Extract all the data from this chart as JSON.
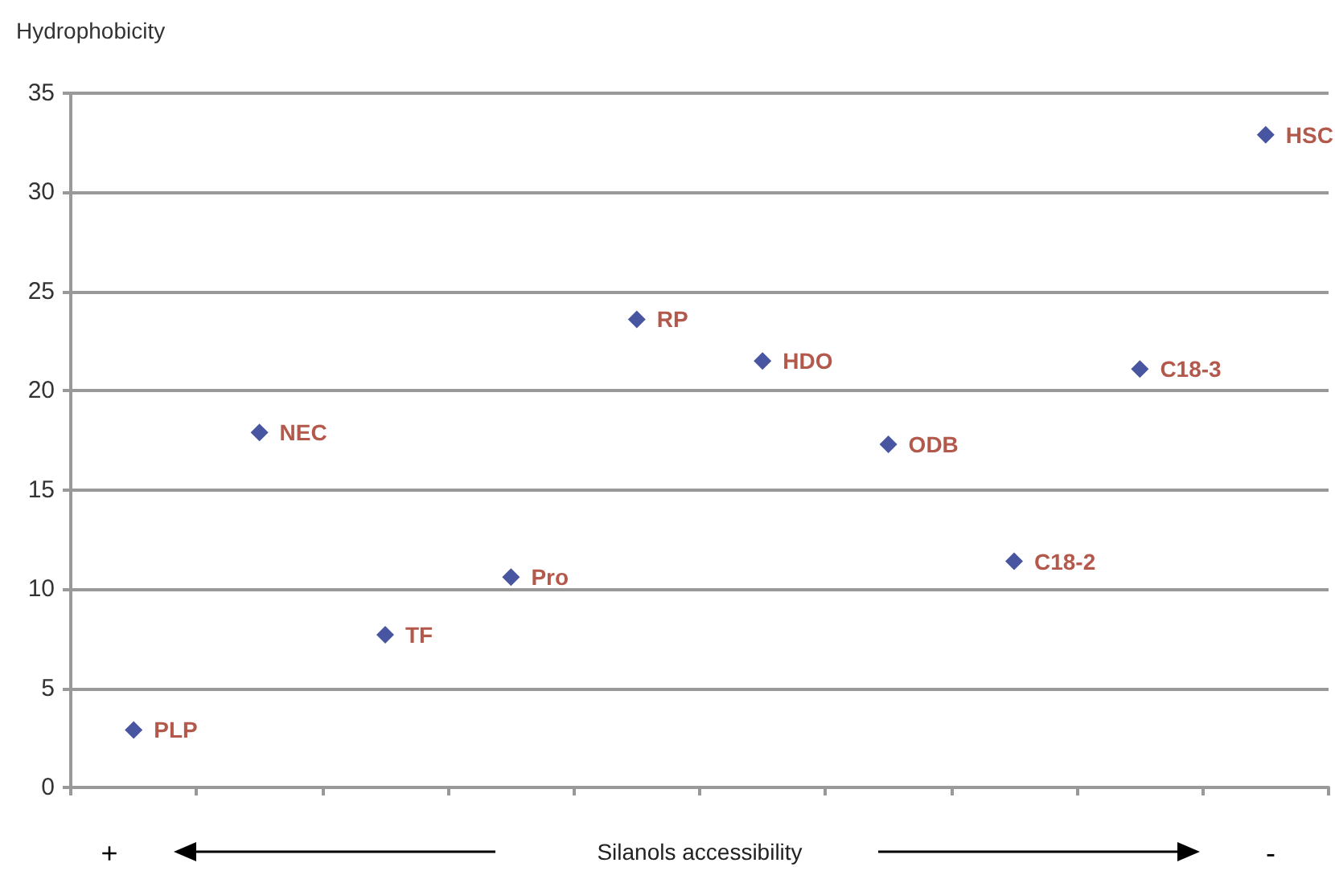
{
  "chart_data": {
    "type": "scatter",
    "ylabel": "Hydrophobicity",
    "xlabel": "Silanols accessibility",
    "categories": [
      null,
      null,
      null,
      null,
      null,
      null,
      null,
      null,
      null,
      null
    ],
    "series": [
      {
        "name": "PLP",
        "color": "#1a2a8a",
        "values": [
          2.9,
          null,
          null,
          null,
          null,
          null,
          null,
          null,
          null,
          null
        ]
      },
      {
        "name": "NEC",
        "color": "#1a2a8a",
        "values": [
          null,
          17.9,
          null,
          null,
          null,
          null,
          null,
          null,
          null,
          null
        ]
      },
      {
        "name": "TF",
        "color": "#1a2a8a",
        "values": [
          null,
          null,
          7.7,
          null,
          null,
          null,
          null,
          null,
          null,
          null
        ]
      },
      {
        "name": "Pro",
        "color": "#1a2a8a",
        "values": [
          null,
          null,
          null,
          10.6,
          null,
          null,
          null,
          null,
          null,
          null
        ]
      },
      {
        "name": "RP",
        "color": "#1a2a8a",
        "values": [
          null,
          null,
          null,
          null,
          23.6,
          null,
          null,
          null,
          null,
          null
        ]
      },
      {
        "name": "HDO",
        "color": "#1a2a8a",
        "values": [
          null,
          null,
          null,
          null,
          null,
          21.5,
          null,
          null,
          null,
          null
        ]
      },
      {
        "name": "ODB",
        "color": "#1a2a8a",
        "values": [
          null,
          null,
          null,
          null,
          null,
          null,
          17.3,
          null,
          null,
          null
        ]
      },
      {
        "name": "C18-2",
        "color": "#1a2a8a",
        "values": [
          null,
          null,
          null,
          null,
          null,
          null,
          null,
          11.4,
          null,
          null
        ]
      },
      {
        "name": "C18-3",
        "color": "#1a2a8a",
        "values": [
          null,
          null,
          null,
          null,
          null,
          null,
          null,
          null,
          21.1,
          null
        ]
      },
      {
        "name": "HSC",
        "color": "#1a2a8a",
        "values": [
          null,
          null,
          null,
          null,
          null,
          null,
          null,
          null,
          null,
          32.9
        ]
      }
    ],
    "marker": "diamond",
    "grid": "y",
    "tick_labels": "y",
    "ylim": [
      0,
      35
    ],
    "yticks": [
      0,
      5,
      10,
      15,
      20,
      25,
      30,
      35
    ],
    "annotations": [
      "+",
      "-"
    ]
  }
}
